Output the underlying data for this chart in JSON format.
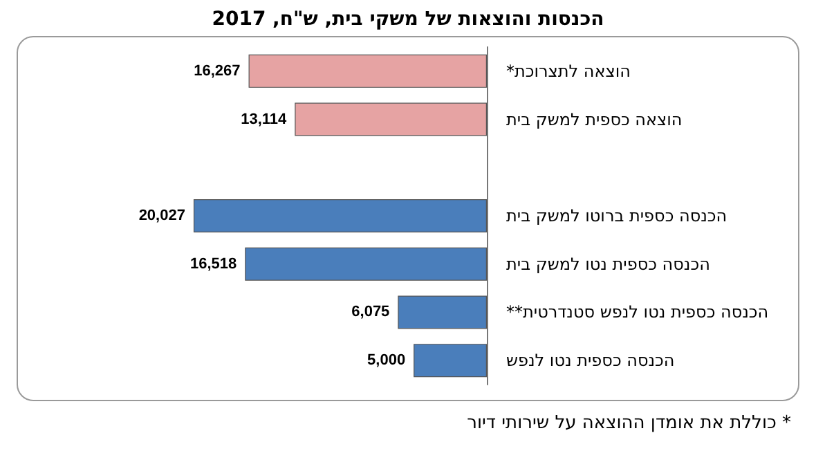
{
  "chart_data": {
    "type": "bar",
    "orientation": "horizontal",
    "title": "הכנסות והוצאות של משקי בית, ש\"ח, 2017",
    "categories": [
      "הוצאה לתצרוכת*",
      "הוצאה כספית למשק בית",
      null,
      "הכנסה כספית ברוטו למשק בית",
      "הכנסה כספית נטו למשק בית",
      "הכנסה כספית נטו לנפש סטנדרטית**",
      "הכנסה כספית נטו לנפש"
    ],
    "values": [
      16267,
      13114,
      null,
      20027,
      16518,
      6075,
      5000
    ],
    "colors": [
      "#e6a3a3",
      "#e6a3a3",
      null,
      "#4a7ebb",
      "#4a7ebb",
      "#4a7ebb",
      "#4a7ebb"
    ],
    "value_labels": [
      "16,267",
      "13,114",
      null,
      "20,027",
      "16,518",
      "6,075",
      "5,000"
    ],
    "annotations": [
      "* כוללת את אומדן ההוצאה על שירותי דיור"
    ]
  }
}
